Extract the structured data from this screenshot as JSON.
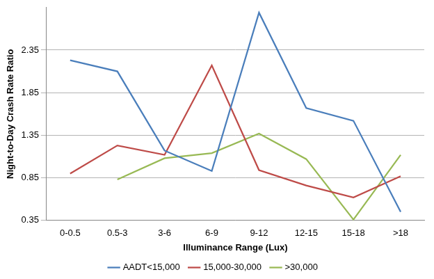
{
  "chart_data": {
    "type": "line",
    "x_label": "Illuminance Range (Lux)",
    "y_label": "Night-to-Day Crash Rate Ratio",
    "categories": [
      "0-0.5",
      "0.5-3",
      "3-6",
      "6-9",
      "9-12",
      "12-15",
      "15-18",
      ">18"
    ],
    "series": [
      {
        "name": "AADT<15,000",
        "color": "#4a7ebb",
        "values": [
          2.23,
          2.1,
          1.17,
          0.93,
          2.79,
          1.67,
          1.52,
          0.45
        ]
      },
      {
        "name": "15,000-30,000",
        "color": "#be4b48",
        "values": [
          0.9,
          1.23,
          1.12,
          2.17,
          0.94,
          0.76,
          0.62,
          0.87
        ]
      },
      {
        "name": ">30,000",
        "color": "#98b954",
        "values": [
          null,
          0.83,
          1.08,
          1.14,
          1.37,
          1.07,
          0.36,
          1.12
        ]
      }
    ],
    "ylim": [
      0.35,
      2.85
    ],
    "yticks": [
      0.35,
      0.85,
      1.35,
      1.85,
      2.35
    ],
    "grid": true,
    "legend": "bottom"
  }
}
